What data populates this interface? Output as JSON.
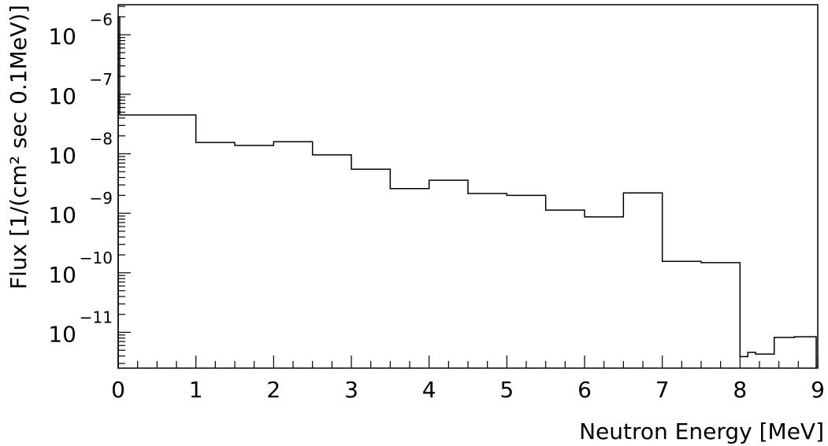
{
  "chart_data": {
    "type": "histogram",
    "xlabel": "Neutron Energy [MeV]",
    "ylabel": "Flux [1/(cm² sec 0.1MeV)]",
    "y_scale": "log",
    "xlim": [
      0,
      9
    ],
    "ylim": [
      2.5e-12,
      3.2e-06
    ],
    "x_ticks": [
      "0",
      "1",
      "2",
      "3",
      "4",
      "5",
      "6",
      "7",
      "8",
      "9"
    ],
    "y_ticks": [
      {
        "value": 1e-11,
        "base": "10",
        "exponent": "−11"
      },
      {
        "value": 1e-10,
        "base": "10",
        "exponent": "−10"
      },
      {
        "value": 1e-09,
        "base": "10",
        "exponent": "−9"
      },
      {
        "value": 1e-08,
        "base": "10",
        "exponent": "−8"
      },
      {
        "value": 1e-07,
        "base": "10",
        "exponent": "−7"
      },
      {
        "value": 1e-06,
        "base": "10",
        "exponent": "−6"
      }
    ],
    "bins": [
      {
        "x0": 0.0,
        "x1": 0.02,
        "y": 2e-06
      },
      {
        "x0": 0.02,
        "x1": 1.0,
        "y": 4.5e-08
      },
      {
        "x0": 1.0,
        "x1": 1.5,
        "y": 1.55e-08
      },
      {
        "x0": 1.5,
        "x1": 2.0,
        "y": 1.38e-08
      },
      {
        "x0": 2.0,
        "x1": 2.5,
        "y": 1.6e-08
      },
      {
        "x0": 2.5,
        "x1": 3.0,
        "y": 9.6e-09
      },
      {
        "x0": 3.0,
        "x1": 3.5,
        "y": 5.5e-09
      },
      {
        "x0": 3.5,
        "x1": 4.0,
        "y": 2.6e-09
      },
      {
        "x0": 4.0,
        "x1": 4.5,
        "y": 3.6e-09
      },
      {
        "x0": 4.5,
        "x1": 5.0,
        "y": 2.15e-09
      },
      {
        "x0": 5.0,
        "x1": 5.5,
        "y": 2e-09
      },
      {
        "x0": 5.5,
        "x1": 6.0,
        "y": 1.13e-09
      },
      {
        "x0": 6.0,
        "x1": 6.5,
        "y": 8.7e-10
      },
      {
        "x0": 6.5,
        "x1": 7.0,
        "y": 2.2e-09
      },
      {
        "x0": 7.0,
        "x1": 7.5,
        "y": 1.56e-10
      },
      {
        "x0": 7.5,
        "x1": 8.0,
        "y": 1.48e-10
      },
      {
        "x0": 8.0,
        "x1": 8.1,
        "y": 3.9e-12
      },
      {
        "x0": 8.1,
        "x1": 8.2,
        "y": 4.6e-12
      },
      {
        "x0": 8.2,
        "x1": 8.44,
        "y": 4.3e-12
      },
      {
        "x0": 8.44,
        "x1": 8.7,
        "y": 8.2e-12
      },
      {
        "x0": 8.7,
        "x1": 8.98,
        "y": 8.4e-12
      }
    ]
  }
}
